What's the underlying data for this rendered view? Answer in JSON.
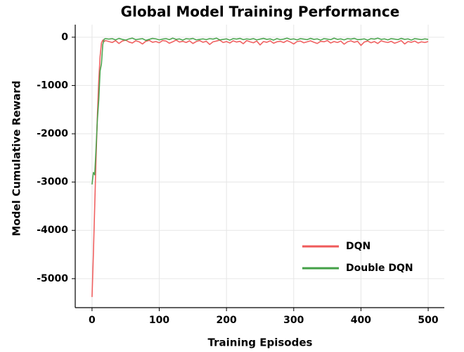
{
  "chart_data": {
    "type": "line",
    "title": "Global Model Training Performance",
    "xlabel": "Training Episodes",
    "ylabel": "Model Cumulative Reward",
    "x": [
      0,
      2,
      4,
      6,
      8,
      10,
      12,
      14,
      16,
      18,
      20,
      25,
      30,
      35,
      40,
      45,
      50,
      55,
      60,
      65,
      70,
      75,
      80,
      85,
      90,
      95,
      100,
      105,
      110,
      115,
      120,
      125,
      130,
      135,
      140,
      145,
      150,
      155,
      160,
      165,
      170,
      175,
      180,
      185,
      190,
      195,
      200,
      205,
      210,
      215,
      220,
      225,
      230,
      235,
      240,
      245,
      250,
      255,
      260,
      265,
      270,
      275,
      280,
      285,
      290,
      295,
      300,
      305,
      310,
      315,
      320,
      325,
      330,
      335,
      340,
      345,
      350,
      355,
      360,
      365,
      370,
      375,
      380,
      385,
      390,
      395,
      400,
      405,
      410,
      415,
      420,
      425,
      430,
      435,
      440,
      445,
      450,
      455,
      460,
      465,
      470,
      475,
      480,
      485,
      490,
      495,
      500
    ],
    "series": [
      {
        "name": "DQN",
        "color": "#ef5a5a",
        "values": [
          -5380,
          -4500,
          -3500,
          -2500,
          -1600,
          -900,
          -400,
          -120,
          -60,
          -90,
          -70,
          -90,
          -110,
          -70,
          -130,
          -80,
          -60,
          -100,
          -120,
          -75,
          -95,
          -140,
          -85,
          -65,
          -105,
          -90,
          -115,
          -70,
          -80,
          -125,
          -95,
          -60,
          -100,
          -85,
          -110,
          -75,
          -130,
          -90,
          -70,
          -105,
          -85,
          -150,
          -95,
          -80,
          -60,
          -110,
          -90,
          -120,
          -75,
          -100,
          -85,
          -135,
          -70,
          -95,
          -115,
          -80,
          -160,
          -90,
          -105,
          -75,
          -125,
          -95,
          -85,
          -110,
          -70,
          -100,
          -140,
          -90,
          -80,
          -115,
          -95,
          -75,
          -105,
          -130,
          -85,
          -95,
          -70,
          -120,
          -90,
          -110,
          -80,
          -145,
          -95,
          -75,
          -105,
          -85,
          -170,
          -100,
          -80,
          -115,
          -90,
          -130,
          -75,
          -95,
          -110,
          -85,
          -125,
          -100,
          -70,
          -140,
          -90,
          -105,
          -80,
          -120,
          -95,
          -110,
          -90
        ]
      },
      {
        "name": "Double DQN",
        "color": "#43a047",
        "values": [
          -3050,
          -2800,
          -2850,
          -2300,
          -1700,
          -1300,
          -700,
          -550,
          -150,
          -40,
          -30,
          -40,
          -30,
          -55,
          -25,
          -45,
          -60,
          -35,
          -20,
          -50,
          -40,
          -30,
          -65,
          -45,
          -25,
          -35,
          -55,
          -40,
          -30,
          -50,
          -20,
          -45,
          -35,
          -60,
          -30,
          -40,
          -25,
          -55,
          -45,
          -35,
          -50,
          -30,
          -40,
          -20,
          -55,
          -45,
          -35,
          -60,
          -30,
          -40,
          -25,
          -50,
          -35,
          -45,
          -30,
          -55,
          -40,
          -25,
          -45,
          -35,
          -60,
          -30,
          -50,
          -40,
          -20,
          -45,
          -35,
          -55,
          -30,
          -40,
          -50,
          -25,
          -45,
          -35,
          -60,
          -30,
          -40,
          -50,
          -20,
          -45,
          -35,
          -55,
          -30,
          -40,
          -25,
          -50,
          -45,
          -35,
          -60,
          -30,
          -40,
          -20,
          -45,
          -35,
          -55,
          -30,
          -40,
          -50,
          -25,
          -45,
          -35,
          -60,
          -30,
          -40,
          -50,
          -35,
          -45
        ]
      }
    ],
    "xlim": [
      -25,
      524
    ],
    "ylim": [
      -5600,
      260
    ],
    "xticks": [
      0,
      100,
      200,
      300,
      400,
      500
    ],
    "yticks": [
      0,
      -1000,
      -2000,
      -3000,
      -4000,
      -5000
    ],
    "grid": true,
    "legend": "lower right"
  }
}
